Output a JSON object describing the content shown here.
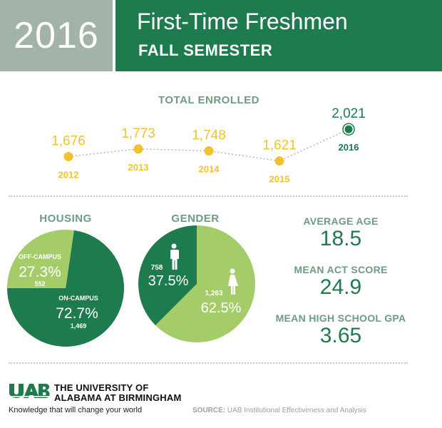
{
  "header": {
    "year": "2016",
    "title": "First-Time Freshmen",
    "subtitle": "FALL SEMESTER"
  },
  "colors": {
    "dark_green": "#1e7b4d",
    "light_green": "#a4cd6a",
    "gold": "#f2c22d",
    "gray_green": "#a3b3a7",
    "label_green": "#6f9b83"
  },
  "icons": [
    "male-figure-icon",
    "female-figure-icon",
    "uab-logo"
  ],
  "chart_data": [
    {
      "type": "line",
      "title": "TOTAL ENROLLED",
      "categories": [
        "2012",
        "2013",
        "2014",
        "2015",
        "2016"
      ],
      "values": [
        1676,
        1773,
        1748,
        1621,
        2021
      ],
      "value_labels": [
        "1,676",
        "1,773",
        "1,748",
        "1,621",
        "2,021"
      ],
      "highlight_last": true
    },
    {
      "type": "pie",
      "title": "HOUSING",
      "slices": [
        {
          "label": "ON-CAMPUS",
          "percent": 72.7,
          "percent_label": "72.7%",
          "count": "1,469"
        },
        {
          "label": "OFF-CAMPUS",
          "percent": 27.3,
          "percent_label": "27.3%",
          "count": "552"
        }
      ]
    },
    {
      "type": "pie",
      "title": "GENDER",
      "slices": [
        {
          "label": "female",
          "percent": 62.5,
          "percent_label": "62.5%",
          "count": "1,263"
        },
        {
          "label": "male",
          "percent": 37.5,
          "percent_label": "37.5%",
          "count": "758"
        }
      ]
    }
  ],
  "stats": [
    {
      "label": "AVERAGE AGE",
      "value": "18.5"
    },
    {
      "label": "MEAN ACT SCORE",
      "value": "24.9"
    },
    {
      "label": "MEAN HIGH SCHOOL GPA",
      "value": "3.65"
    }
  ],
  "footer": {
    "logo_text": "UAB",
    "university_line1": "THE UNIVERSITY OF",
    "university_line2": "ALABAMA AT BIRMINGHAM",
    "tagline": "Knowledge that will change your world",
    "source_label": "SOURCE:",
    "source_text": "UAB Institutional Effectiveness and Analysis"
  }
}
